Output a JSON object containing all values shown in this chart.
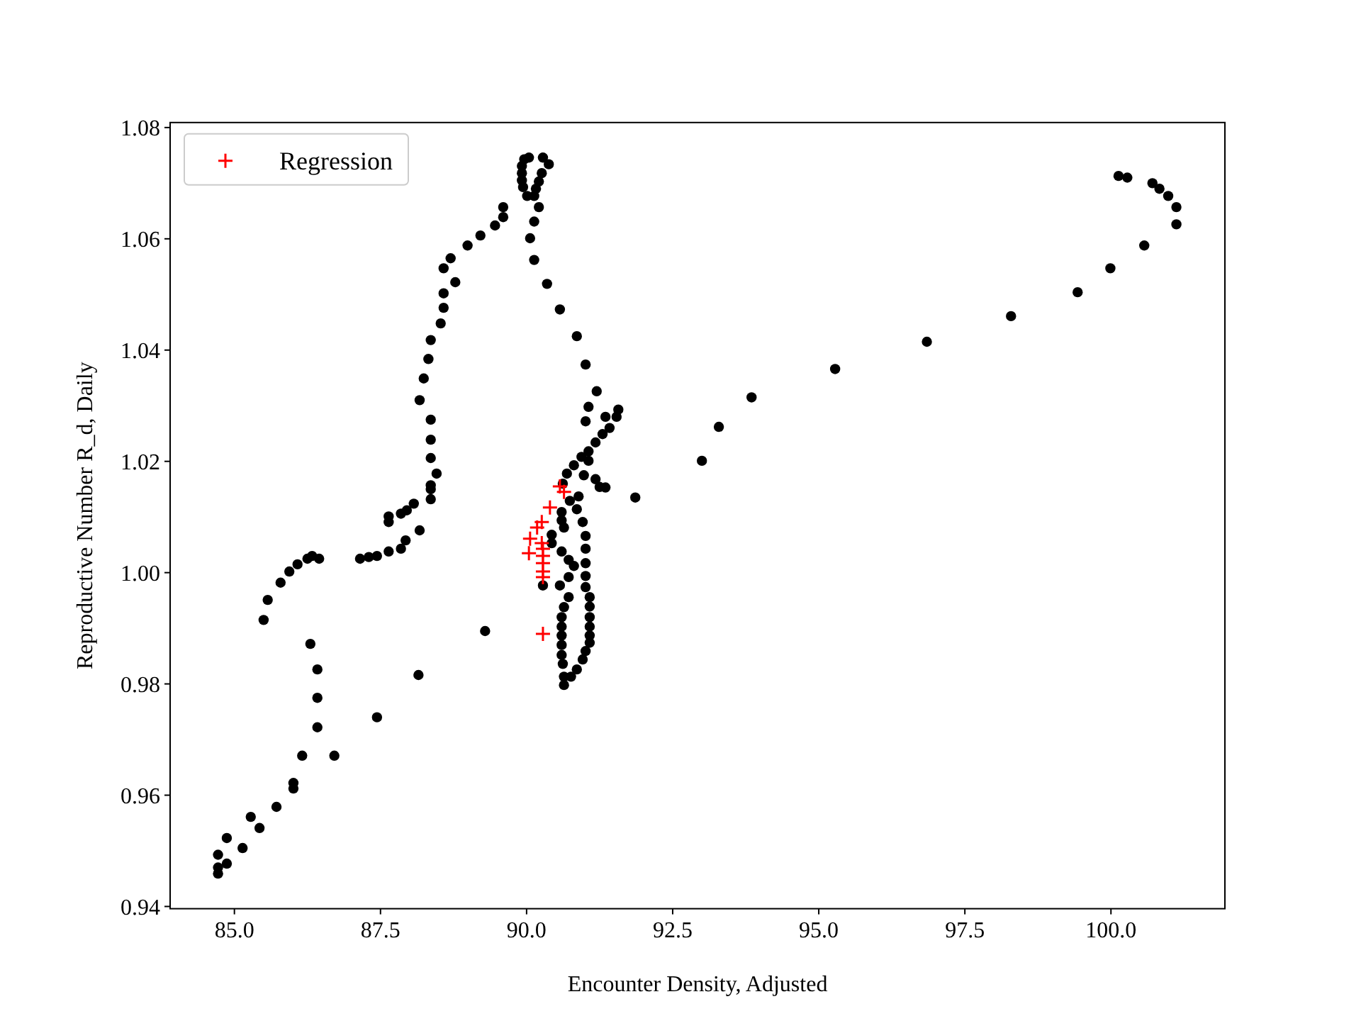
{
  "chart_data": {
    "type": "scatter",
    "xlabel": "Encounter Density, Adjusted",
    "ylabel": "Reproductive Number R_d, Daily",
    "xlim": [
      83.9,
      101.95
    ],
    "ylim": [
      0.9396,
      1.0809
    ],
    "xticks": [
      {
        "value": 85,
        "label": "85.0"
      },
      {
        "value": 87.5,
        "label": "87.5"
      },
      {
        "value": 90,
        "label": "90.0"
      },
      {
        "value": 92.5,
        "label": "92.5"
      },
      {
        "value": 95,
        "label": "95.0"
      },
      {
        "value": 97.5,
        "label": "97.5"
      },
      {
        "value": 100,
        "label": "100.0"
      }
    ],
    "yticks": [
      {
        "value": 0.94,
        "label": "0.94"
      },
      {
        "value": 0.96,
        "label": "0.96"
      },
      {
        "value": 0.98,
        "label": "0.98"
      },
      {
        "value": 1.0,
        "label": "1.00"
      },
      {
        "value": 1.02,
        "label": "1.02"
      },
      {
        "value": 1.04,
        "label": "1.04"
      },
      {
        "value": 1.06,
        "label": "1.06"
      },
      {
        "value": 1.08,
        "label": "1.08"
      }
    ],
    "grid": false,
    "legend": "top left",
    "series": [
      {
        "color": "#000000",
        "marker": "circle",
        "x": [
          84.72,
          84.72,
          84.87,
          84.72,
          84.87,
          85.14,
          85.43,
          85.28,
          85.72,
          86.01,
          86.01,
          86.16,
          86.71,
          86.42,
          86.42,
          86.42,
          86.3,
          87.44,
          88.15,
          89.29,
          85.5,
          85.57,
          85.79,
          85.94,
          86.08,
          86.25,
          86.33,
          86.45,
          87.15,
          87.3,
          87.44,
          87.64,
          87.85,
          87.93,
          87.64,
          87.64,
          87.85,
          87.95,
          88.07,
          88.17,
          88.36,
          88.36,
          88.36,
          88.46,
          88.36,
          88.36,
          88.36,
          88.17,
          88.24,
          88.32,
          88.36,
          88.53,
          88.58,
          88.58,
          88.78,
          88.58,
          88.7,
          88.99,
          89.21,
          89.46,
          89.6,
          89.6,
          89.96,
          90.04,
          89.92,
          89.92,
          89.92,
          89.94,
          90.01,
          90.13,
          90.28,
          90.38,
          90.26,
          90.21,
          90.16,
          90.21,
          90.13,
          90.06,
          90.13,
          90.35,
          90.57,
          90.86,
          91.01,
          91.2,
          91.06,
          91.01,
          91.57,
          91.54,
          91.42,
          91.35,
          91.86,
          91.3,
          91.18,
          91.06,
          90.94,
          90.81,
          90.69,
          90.98,
          91.18,
          91.06,
          91.25,
          91.35,
          90.62,
          90.74,
          90.89,
          90.86,
          90.6,
          90.6,
          90.64,
          90.96,
          90.43,
          90.43,
          91.01,
          91.01,
          90.6,
          90.72,
          90.81,
          91.01,
          90.72,
          91.01,
          90.57,
          90.28,
          91.01,
          90.72,
          91.08,
          90.64,
          91.08,
          90.6,
          91.08,
          90.6,
          91.08,
          90.6,
          91.08,
          90.6,
          91.08,
          90.6,
          91.01,
          90.96,
          90.62,
          90.86,
          90.64,
          90.76,
          90.64,
          93.0,
          93.29,
          93.85,
          95.28,
          96.85,
          98.29,
          99.43,
          99.99,
          100.57,
          101.12,
          101.12,
          100.98,
          100.83,
          100.71,
          100.28,
          100.13
        ],
        "values": [
          0.9459,
          0.947,
          0.9477,
          0.9493,
          0.9523,
          0.9505,
          0.9541,
          0.9561,
          0.9579,
          0.9612,
          0.9622,
          0.9671,
          0.9671,
          0.9722,
          0.9775,
          0.9826,
          0.9872,
          0.974,
          0.9816,
          0.9895,
          0.9915,
          0.9951,
          0.9982,
          1.0002,
          1.0015,
          1.0025,
          1.003,
          1.0025,
          1.0025,
          1.0028,
          1.003,
          1.0038,
          1.0043,
          1.0058,
          1.0091,
          1.0101,
          1.0106,
          1.0112,
          1.0124,
          1.0076,
          1.0132,
          1.015,
          1.0157,
          1.0178,
          1.0206,
          1.0239,
          1.0275,
          1.031,
          1.0349,
          1.0384,
          1.0418,
          1.0448,
          1.0476,
          1.0502,
          1.0522,
          1.0547,
          1.0565,
          1.0588,
          1.0606,
          1.0624,
          1.0639,
          1.0657,
          1.0743,
          1.0746,
          1.0731,
          1.0718,
          1.0705,
          1.0693,
          1.0677,
          1.0677,
          1.0746,
          1.0734,
          1.0718,
          1.0703,
          1.069,
          1.0657,
          1.0631,
          1.0601,
          1.0562,
          1.0519,
          1.0473,
          1.0425,
          1.0374,
          1.0326,
          1.0298,
          1.0272,
          1.0293,
          1.028,
          1.026,
          1.028,
          1.0135,
          1.0249,
          1.0234,
          1.0218,
          1.0208,
          1.0193,
          1.0178,
          1.0175,
          1.0168,
          1.0201,
          1.0154,
          1.0153,
          1.016,
          1.0129,
          1.0137,
          1.0114,
          1.0109,
          1.0094,
          1.0081,
          1.0091,
          1.0068,
          1.0053,
          1.0066,
          1.0043,
          1.0038,
          1.0023,
          1.0012,
          1.0017,
          0.9992,
          0.9994,
          0.9977,
          0.9977,
          0.9974,
          0.9956,
          0.9956,
          0.9938,
          0.9939,
          0.992,
          0.992,
          0.9903,
          0.9903,
          0.9887,
          0.9887,
          0.987,
          0.9874,
          0.9852,
          0.9859,
          0.9844,
          0.9836,
          0.9826,
          0.9813,
          0.9813,
          0.9798,
          1.0201,
          1.0262,
          1.0315,
          1.0366,
          1.0415,
          1.0461,
          1.0504,
          1.0547,
          1.0588,
          1.0626,
          1.0657,
          1.0677,
          1.069,
          1.07,
          1.071,
          1.0713
        ]
      },
      {
        "name": "Regression",
        "color": "#ff0000",
        "marker": "cross",
        "x": [
          90.57,
          90.64,
          90.4,
          90.26,
          90.18,
          90.06,
          90.04,
          90.26,
          90.28,
          90.28,
          90.28,
          90.28,
          90.28,
          90.28
        ],
        "values": [
          1.0155,
          1.0145,
          1.0117,
          1.0091,
          1.0081,
          1.0061,
          1.0035,
          1.0053,
          1.0043,
          1.003,
          1.0017,
          1.0002,
          0.9992,
          0.989
        ]
      }
    ]
  }
}
